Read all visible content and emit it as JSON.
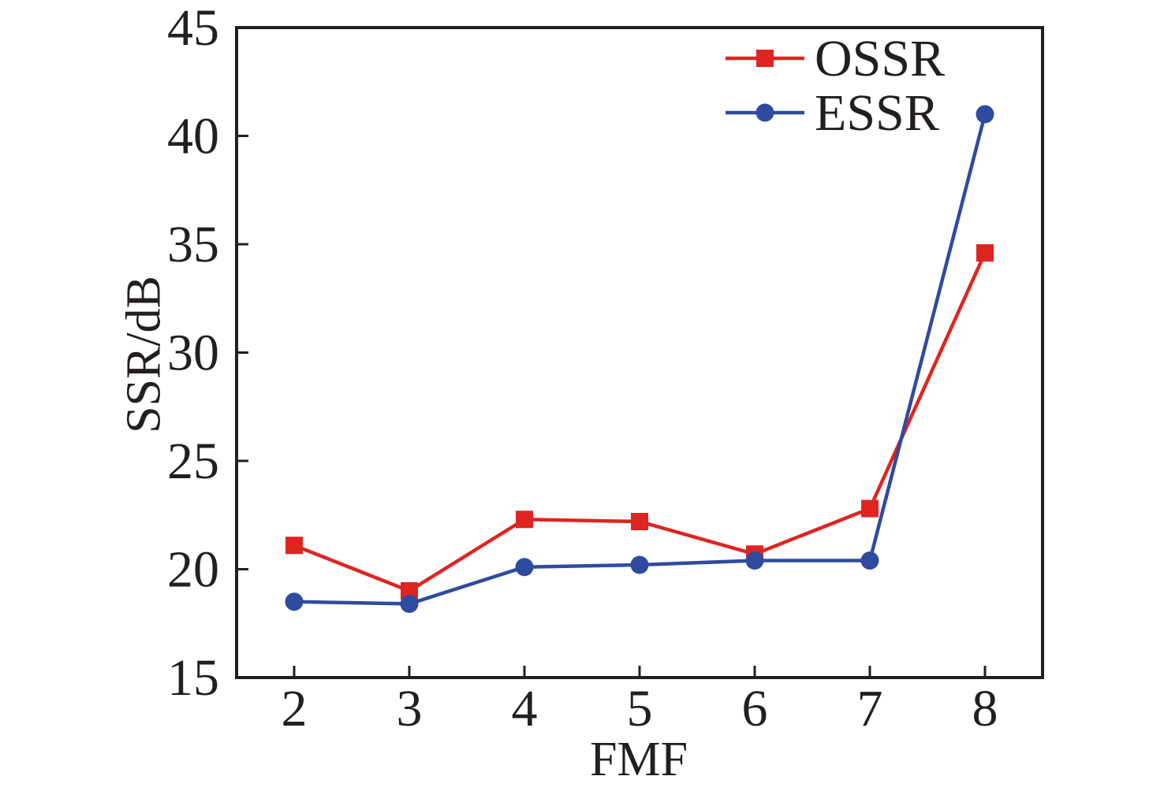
{
  "chart_data": {
    "type": "line",
    "title": "",
    "xlabel": "FMF",
    "ylabel": "SSR/dB",
    "x": [
      2,
      3,
      4,
      5,
      6,
      7,
      8
    ],
    "series": [
      {
        "name": "OSSR",
        "marker": "square",
        "color": "#e02421",
        "values": [
          21.1,
          19.0,
          22.3,
          22.2,
          20.7,
          22.8,
          34.6
        ]
      },
      {
        "name": "ESSR",
        "marker": "circle",
        "color": "#2e4ba0",
        "values": [
          18.5,
          18.4,
          20.1,
          20.2,
          20.4,
          20.4,
          41.0
        ]
      }
    ],
    "xlim": [
      1.5,
      8.5
    ],
    "ylim": [
      15,
      45
    ],
    "x_ticks": [
      2,
      3,
      4,
      5,
      6,
      7,
      8
    ],
    "y_ticks": [
      15,
      20,
      25,
      30,
      35,
      40,
      45
    ],
    "grid": false,
    "legend_position": "top-right-inside",
    "axis_color": "#231f20",
    "text_color": "#231f20",
    "background": "#ffffff"
  }
}
